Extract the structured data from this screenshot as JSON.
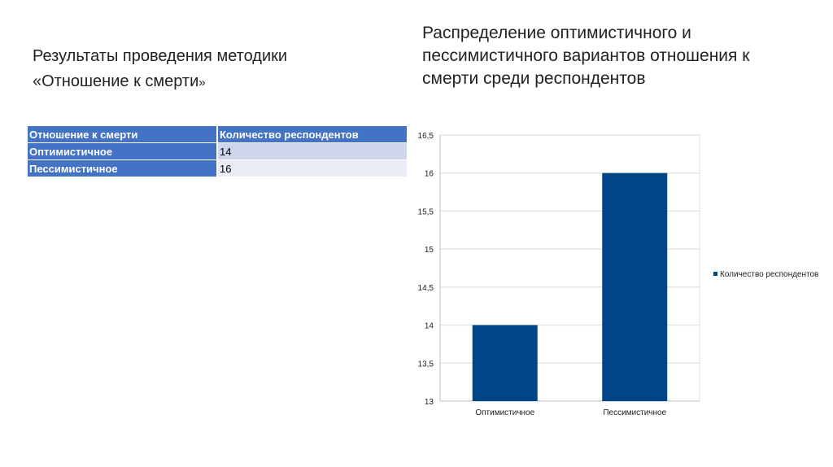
{
  "left_title": {
    "line1": "Результаты проведения методики",
    "line2_main": "«Отношение к смерти",
    "line2_quote": "»"
  },
  "table": {
    "headers": [
      "Отношение к смерти",
      "Количество респондентов"
    ],
    "rows": [
      [
        "Оптимистичное",
        "14"
      ],
      [
        "Пессимистичное",
        "16"
      ]
    ]
  },
  "chart_data": {
    "type": "bar",
    "title": "Распределение оптимистичного и пессимистичного вариантов отношения к смерти среди респондентов",
    "categories": [
      "Оптимистичное",
      "Пессимистичное"
    ],
    "series": [
      {
        "name": "Количество респондентов",
        "values": [
          14,
          16
        ],
        "color": "#004586"
      }
    ],
    "ylim": [
      13,
      16.5
    ],
    "yticks": [
      "13",
      "13,5",
      "14",
      "14,5",
      "15",
      "15,5",
      "16",
      "16,5"
    ],
    "grid": true,
    "legend": "right",
    "xlabel": "",
    "ylabel": ""
  }
}
